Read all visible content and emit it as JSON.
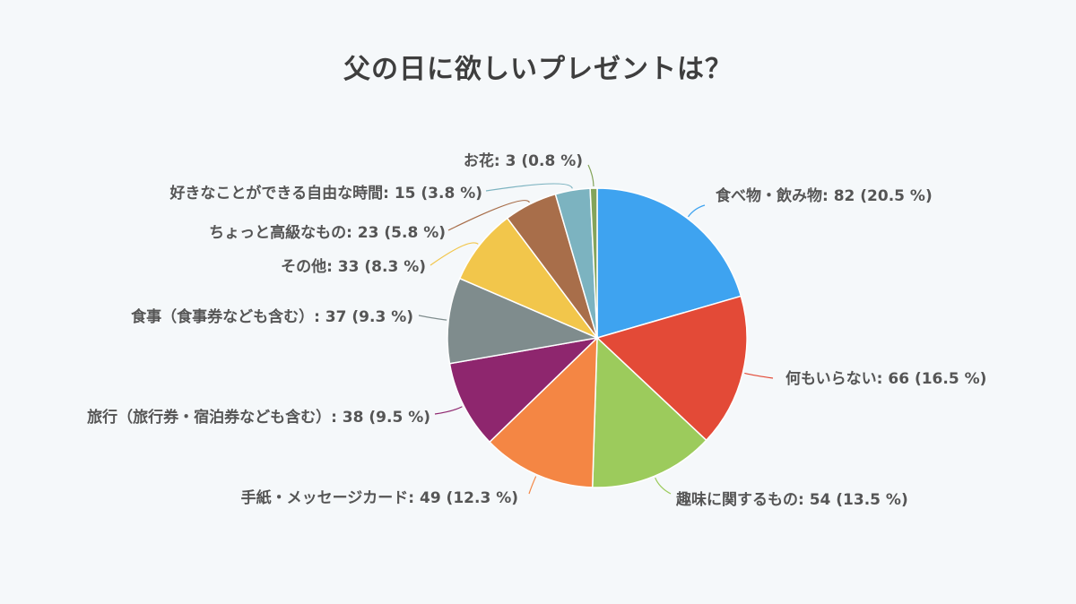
{
  "chart_data": {
    "type": "pie",
    "title": "父の日に欲しいプレゼントは？",
    "slices": [
      {
        "label": "食べ物・飲み物",
        "value": 82,
        "percent": "20.5 %",
        "text": "食べ物・飲み物: 82 (20.5 %)",
        "color": "#3ea3f0"
      },
      {
        "label": "何もいらない",
        "value": 66,
        "percent": "16.5 %",
        "text": "何もいらない: 66 (16.5 %)",
        "color": "#e34a37"
      },
      {
        "label": "趣味に関するもの",
        "value": 54,
        "percent": "13.5 %",
        "text": "趣味に関するもの: 54 (13.5 %)",
        "color": "#9ccb5c"
      },
      {
        "label": "手紙・メッセージカード",
        "value": 49,
        "percent": "12.3 %",
        "text": "手紙・メッセージカード: 49 (12.3 %)",
        "color": "#f48644"
      },
      {
        "label": "旅行（旅行券・宿泊券なども含む）",
        "value": 38,
        "percent": "9.5 %",
        "text": "旅行（旅行券・宿泊券なども含む）: 38 (9.5 %)",
        "color": "#8e266e"
      },
      {
        "label": "食事（食事券なども含む）",
        "value": 37,
        "percent": "9.3 %",
        "text": "食事（食事券なども含む）: 37 (9.3 %)",
        "color": "#7f8c8d"
      },
      {
        "label": "その他",
        "value": 33,
        "percent": "8.3 %",
        "text": "その他: 33 (8.3 %)",
        "color": "#f2c64b"
      },
      {
        "label": "ちょっと高級なもの",
        "value": 23,
        "percent": "5.8 %",
        "text": "ちょっと高級なもの: 23 (5.8 %)",
        "color": "#a86e4a"
      },
      {
        "label": "好きなことができる自由な時間",
        "value": 15,
        "percent": "3.8 %",
        "text": "好きなことができる自由な時間: 15 (3.8 %)",
        "color": "#7cb3c0"
      },
      {
        "label": "お花",
        "value": 3,
        "percent": "0.8 %",
        "text": "お花: 3 (0.8 %)",
        "color": "#84a45a"
      }
    ],
    "legend": "none",
    "data_labels": "outside-with-leader-lines"
  }
}
